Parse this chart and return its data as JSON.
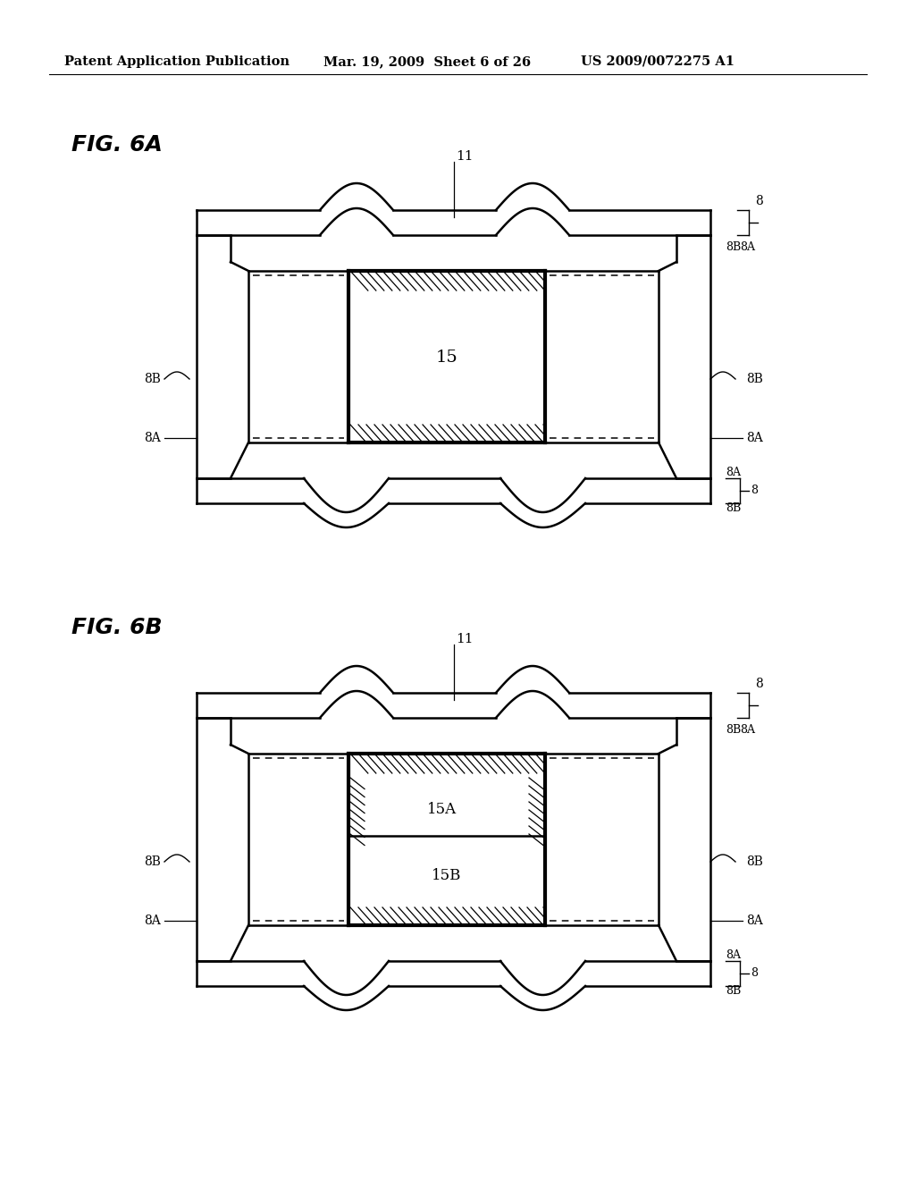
{
  "bg": "#ffffff",
  "header_left": "Patent Application Publication",
  "header_center": "Mar. 19, 2009  Sheet 6 of 26",
  "header_right": "US 2009/0072275 A1",
  "fig_a_label": "FIG. 6A",
  "fig_b_label": "FIG. 6B",
  "lw": 1.8,
  "lw_thick": 3.0,
  "col": "#000000"
}
